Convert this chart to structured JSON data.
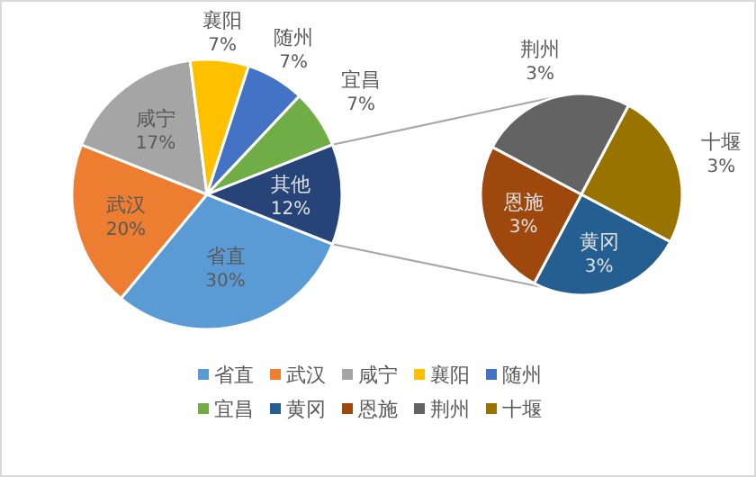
{
  "chart_data": [
    {
      "type": "pie",
      "categories": [
        "省直",
        "武汉",
        "咸宁",
        "襄阳",
        "随州",
        "宜昌",
        "其他"
      ],
      "values": [
        30,
        20,
        17,
        7,
        7,
        7,
        12
      ],
      "value_labels": [
        "30%",
        "20%",
        "17%",
        "7%",
        "7%",
        "7%",
        "12%"
      ],
      "colors": [
        "#5b9bd5",
        "#ed7d31",
        "#a5a5a5",
        "#ffc000",
        "#4472c4",
        "#70ad47",
        "#264478"
      ],
      "legend": "bottom"
    },
    {
      "type": "pie",
      "categories": [
        "黄冈",
        "恩施",
        "荆州",
        "十堰"
      ],
      "values": [
        3,
        3,
        3,
        3
      ],
      "value_labels": [
        "3%",
        "3%",
        "3%",
        "3%"
      ],
      "colors": [
        "#255e91",
        "#9e480e",
        "#636363",
        "#997300"
      ],
      "legend": "bottom"
    }
  ]
}
